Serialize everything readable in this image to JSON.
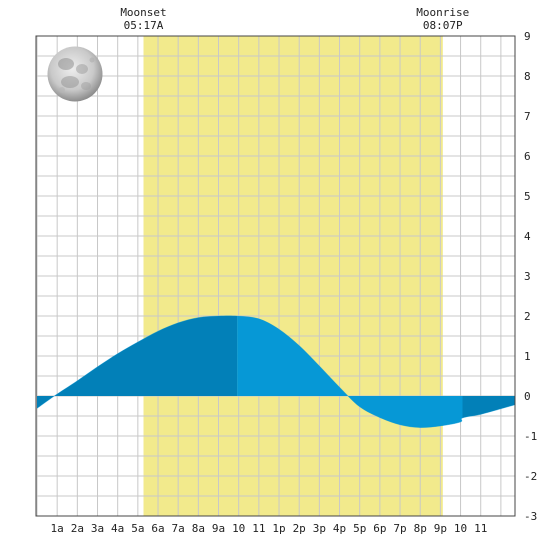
{
  "chart_data": {
    "type": "area",
    "title": "",
    "xlabel": "",
    "ylabel": "",
    "x_ticks": [
      "1a",
      "2a",
      "3a",
      "4a",
      "5a",
      "6a",
      "7a",
      "8a",
      "9a",
      "10",
      "11",
      "1p",
      "2p",
      "3p",
      "4p",
      "5p",
      "6p",
      "7p",
      "8p",
      "9p",
      "10",
      "11"
    ],
    "xlim": [
      -0.05,
      23.7
    ],
    "ylim": [
      -3,
      9
    ],
    "y_ticks": [
      "-3",
      "-2",
      "-1",
      "0",
      "1",
      "2",
      "3",
      "4",
      "5",
      "6",
      "7",
      "8",
      "9"
    ],
    "grid": true,
    "moonset": {
      "label": "Moonset",
      "time": "05:17A",
      "hour": 5.28
    },
    "moonrise": {
      "label": "Moonrise",
      "time": "08:07P",
      "hour": 20.12
    },
    "moon_phase_icon": "full-moon-icon",
    "series": [
      {
        "x": [
          0,
          1,
          2,
          3,
          4,
          5,
          6,
          7,
          8,
          9,
          9.92,
          11,
          12,
          13,
          14,
          15,
          16,
          17,
          18,
          19,
          20,
          21,
          21.1,
          22,
          23,
          23.7
        ],
        "values": [
          -0.31,
          0.05,
          0.38,
          0.73,
          1.06,
          1.35,
          1.62,
          1.83,
          1.96,
          2.0,
          2.0,
          1.93,
          1.67,
          1.26,
          0.75,
          0.22,
          -0.27,
          -0.54,
          -0.72,
          -0.79,
          -0.75,
          -0.65,
          -0.55,
          -0.46,
          -0.32,
          -0.22
        ]
      }
    ],
    "colors": {
      "daylight": "#f2ea8c",
      "tide_dark": "#0280b8",
      "tide_light": "#0698d6",
      "grid": "#c8c8c8",
      "plot_background": "#ffffff"
    }
  }
}
